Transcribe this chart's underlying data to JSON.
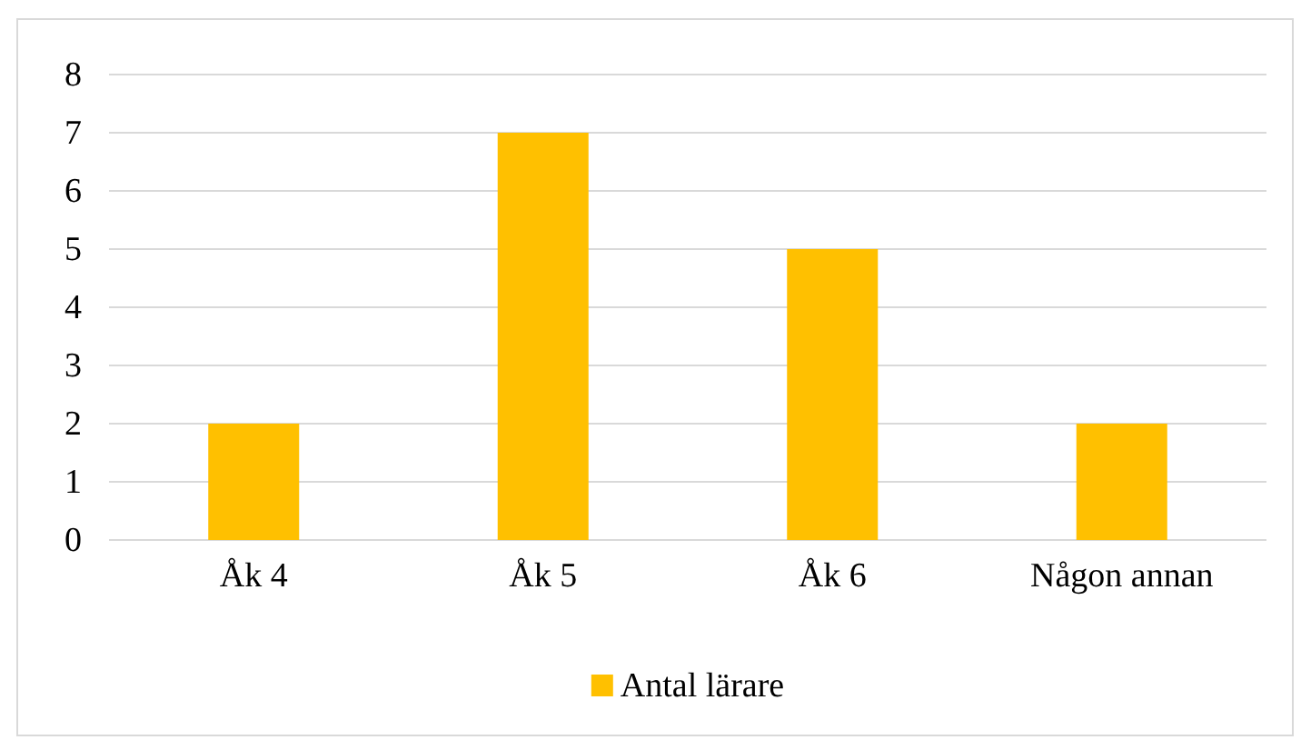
{
  "chart_data": {
    "type": "bar",
    "categories": [
      "Åk 4",
      "Åk 5",
      "Åk 6",
      "Någon annan"
    ],
    "series": [
      {
        "name": "Antal lärare",
        "color": "#ffc000",
        "values": [
          2,
          7,
          5,
          2
        ]
      }
    ],
    "ylim": [
      0,
      8
    ],
    "yticks": [
      0,
      1,
      2,
      3,
      4,
      5,
      6,
      7,
      8
    ],
    "grid": "y",
    "legend": "bottom"
  }
}
